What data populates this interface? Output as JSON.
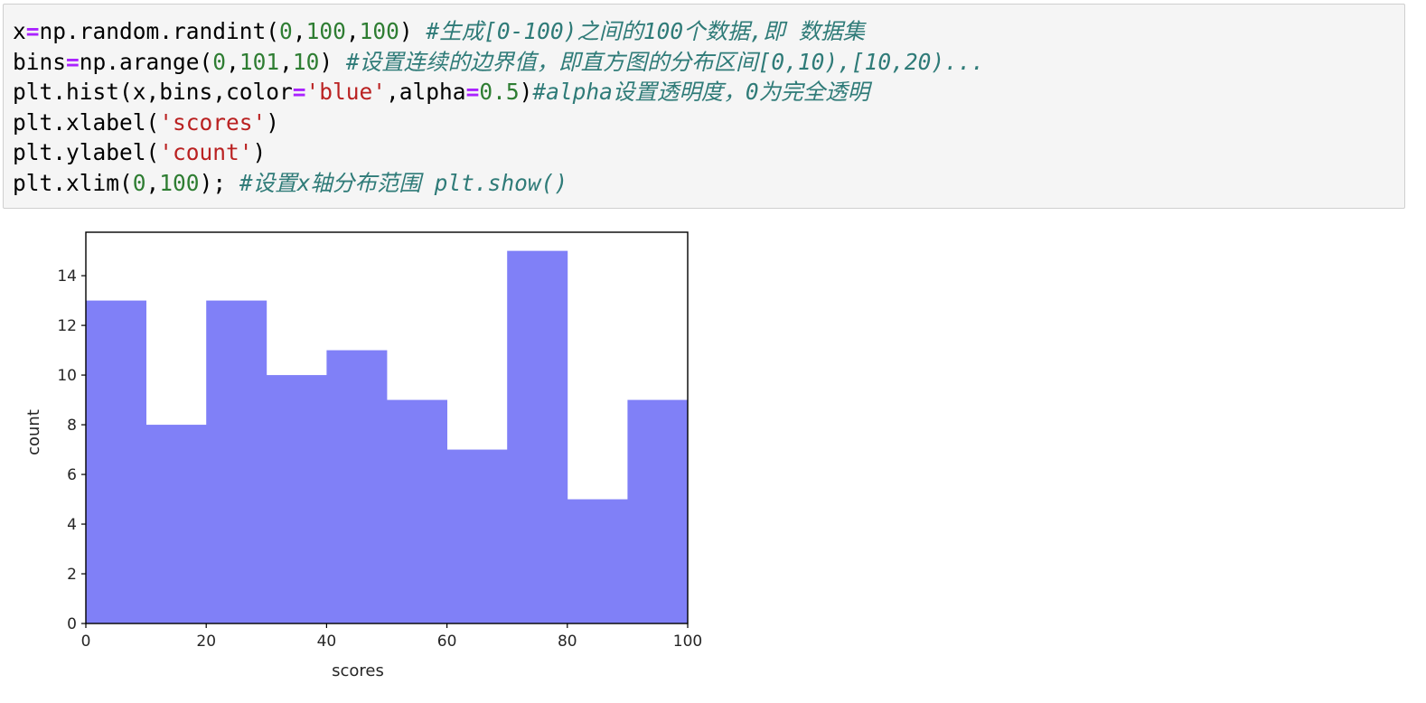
{
  "code_cell": {
    "lines": [
      [
        {
          "t": "txt",
          "v": "x"
        },
        {
          "t": "op",
          "v": "="
        },
        {
          "t": "txt",
          "v": "np.random.randint("
        },
        {
          "t": "num",
          "v": "0"
        },
        {
          "t": "txt",
          "v": ","
        },
        {
          "t": "num",
          "v": "100"
        },
        {
          "t": "txt",
          "v": ","
        },
        {
          "t": "num",
          "v": "100"
        },
        {
          "t": "txt",
          "v": ") "
        },
        {
          "t": "cmt",
          "v": "#生成[0-100)之间的100个数据,即 数据集"
        }
      ],
      [
        {
          "t": "txt",
          "v": "bins"
        },
        {
          "t": "op",
          "v": "="
        },
        {
          "t": "txt",
          "v": "np.arange("
        },
        {
          "t": "num",
          "v": "0"
        },
        {
          "t": "txt",
          "v": ","
        },
        {
          "t": "num",
          "v": "101"
        },
        {
          "t": "txt",
          "v": ","
        },
        {
          "t": "num",
          "v": "10"
        },
        {
          "t": "txt",
          "v": ") "
        },
        {
          "t": "cmt",
          "v": "#设置连续的边界值，即直方图的分布区间[0,10),[10,20)..."
        }
      ],
      [
        {
          "t": "txt",
          "v": "plt.hist(x,bins,color"
        },
        {
          "t": "op",
          "v": "="
        },
        {
          "t": "str",
          "v": "'blue'"
        },
        {
          "t": "txt",
          "v": ",alpha"
        },
        {
          "t": "op",
          "v": "="
        },
        {
          "t": "num",
          "v": "0.5"
        },
        {
          "t": "txt",
          "v": ")"
        },
        {
          "t": "cmt",
          "v": "#alpha设置透明度，0为完全透明"
        }
      ],
      [
        {
          "t": "txt",
          "v": "plt.xlabel("
        },
        {
          "t": "str",
          "v": "'scores'"
        },
        {
          "t": "txt",
          "v": ")"
        }
      ],
      [
        {
          "t": "txt",
          "v": "plt.ylabel("
        },
        {
          "t": "str",
          "v": "'count'"
        },
        {
          "t": "txt",
          "v": ")"
        }
      ],
      [
        {
          "t": "txt",
          "v": "plt.xlim("
        },
        {
          "t": "num",
          "v": "0"
        },
        {
          "t": "txt",
          "v": ","
        },
        {
          "t": "num",
          "v": "100"
        },
        {
          "t": "txt",
          "v": "); "
        },
        {
          "t": "cmt",
          "v": "#设置x轴分布范围 plt.show()"
        }
      ]
    ]
  },
  "chart_data": {
    "type": "bar",
    "bin_edges": [
      0,
      10,
      20,
      30,
      40,
      50,
      60,
      70,
      80,
      90,
      100
    ],
    "values": [
      13,
      8,
      13,
      10,
      11,
      9,
      7,
      15,
      5,
      9
    ],
    "title": "",
    "xlabel": "scores",
    "ylabel": "count",
    "xlim": [
      0,
      100
    ],
    "ylim": [
      0,
      15.75
    ],
    "x_ticks": [
      "0",
      "20",
      "40",
      "60",
      "80",
      "100"
    ],
    "y_ticks": [
      "0",
      "2",
      "4",
      "6",
      "8",
      "10",
      "12",
      "14"
    ],
    "bar_color": "#8080f7",
    "grid": false,
    "legend": "none"
  }
}
